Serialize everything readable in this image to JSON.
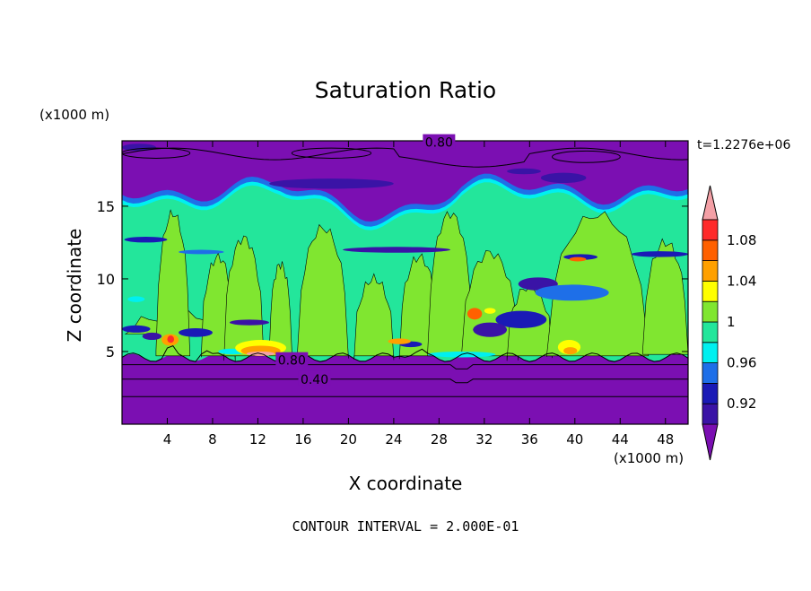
{
  "chart_data": {
    "type": "heatmap",
    "title": "Saturation Ratio",
    "xlabel": "X coordinate",
    "ylabel": "Z coordinate",
    "x_unit": "(x1000 m)",
    "z_unit": "(x1000 m)",
    "xlim": [
      0,
      50
    ],
    "ylim": [
      0,
      19.5
    ],
    "x_ticks": [
      "4",
      "8",
      "12",
      "16",
      "20",
      "24",
      "28",
      "32",
      "36",
      "40",
      "44",
      "48"
    ],
    "x_tick_values": [
      4,
      8,
      12,
      16,
      20,
      24,
      28,
      32,
      36,
      40,
      44,
      48
    ],
    "y_ticks": [
      "5",
      "10",
      "15"
    ],
    "y_tick_values": [
      5,
      10,
      15
    ],
    "time_label": "t=1.2276e+06",
    "contour_labels": [
      {
        "text": "0.80",
        "x": 28,
        "y": 19.4
      },
      {
        "text": "0.80",
        "x": 15,
        "y": 4.4
      },
      {
        "text": "0.40",
        "x": 17,
        "y": 3.1
      }
    ],
    "colorbar": {
      "labels": [
        "1.08",
        "1.04",
        "1",
        "0.96",
        "0.92"
      ],
      "label_values": [
        1.08,
        1.04,
        1.0,
        0.96,
        0.92
      ],
      "levels": [
        0.9,
        0.92,
        0.94,
        0.96,
        0.98,
        1.0,
        1.02,
        1.04,
        1.06,
        1.08,
        1.1
      ],
      "colors": [
        "#3a13a6",
        "#1a1ab6",
        "#1e6fe8",
        "#00f0f0",
        "#23e69b",
        "#80e630",
        "#ffff00",
        "#ffa000",
        "#ff6000",
        "#ff2a2a"
      ],
      "below_color": "#7b0fb2",
      "above_color": "#f4a0a6"
    },
    "regions": {
      "upper_dry_layer": {
        "z_range": [
          16,
          19.5
        ],
        "ratio": "< 0.90"
      },
      "saturated_layer": {
        "z_range": [
          4.7,
          16
        ],
        "ratio": "0.98 - 1.02"
      },
      "lower_dry_layer": {
        "z_range": [
          0,
          4.7
        ],
        "ratio": "< 0.90"
      }
    },
    "footnote": "CONTOUR INTERVAL = 2.000E-01"
  }
}
